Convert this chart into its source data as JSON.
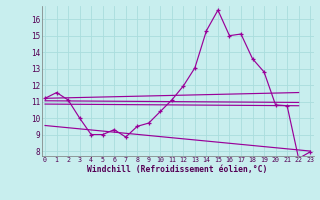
{
  "xlabel": "Windchill (Refroidissement éolien,°C)",
  "background_color": "#c8eeee",
  "grid_color": "#aadddd",
  "line_color": "#990099",
  "x_labels": [
    "0",
    "1",
    "2",
    "3",
    "4",
    "5",
    "6",
    "7",
    "8",
    "9",
    "10",
    "11",
    "12",
    "13",
    "14",
    "15",
    "16",
    "17",
    "18",
    "19",
    "20",
    "21",
    "22",
    "23"
  ],
  "main_line": [
    11.2,
    11.55,
    11.1,
    10.0,
    9.0,
    9.0,
    9.3,
    8.85,
    9.5,
    9.7,
    10.4,
    11.1,
    11.95,
    13.05,
    15.3,
    16.55,
    15.0,
    15.1,
    13.6,
    12.8,
    10.8,
    10.75,
    7.55,
    7.95
  ],
  "flat_line1": {
    "x": [
      0,
      22
    ],
    "y": [
      11.2,
      11.55
    ]
  },
  "flat_line2": {
    "x": [
      0,
      22
    ],
    "y": [
      11.05,
      10.95
    ]
  },
  "flat_line3": {
    "x": [
      0,
      22
    ],
    "y": [
      10.85,
      10.75
    ]
  },
  "desc_line": {
    "x": [
      0,
      23
    ],
    "y": [
      9.55,
      8.0
    ]
  },
  "ylim": [
    7.7,
    16.8
  ],
  "yticks": [
    8,
    9,
    10,
    11,
    12,
    13,
    14,
    15,
    16
  ],
  "xlim": [
    -0.3,
    23.3
  ]
}
